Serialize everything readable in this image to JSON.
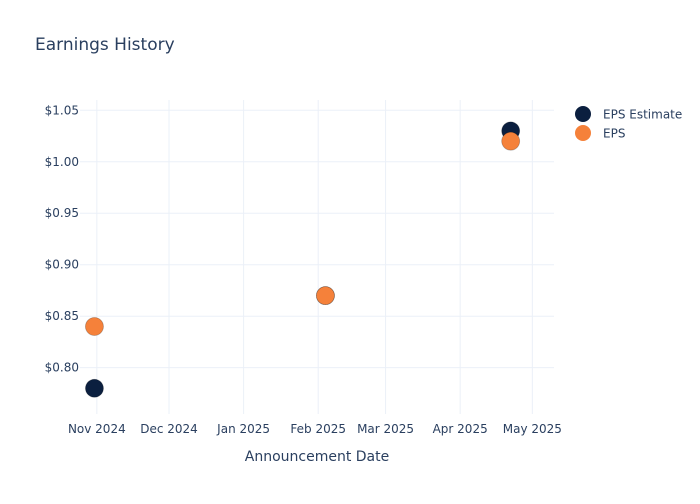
{
  "chart_data": {
    "type": "scatter",
    "title": "Earnings History",
    "xlabel": "Announcement Date",
    "ylabel": "",
    "x_ticks": [
      "Nov 2024",
      "Dec 2024",
      "Jan 2025",
      "Feb 2025",
      "Mar 2025",
      "Apr 2025",
      "May 2025"
    ],
    "x_tick_dates": [
      "2024-11-01",
      "2024-12-01",
      "2025-01-01",
      "2025-02-01",
      "2025-03-01",
      "2025-04-01",
      "2025-05-01"
    ],
    "xlim": [
      "2024-10-25",
      "2025-05-10"
    ],
    "y_ticks": [
      {
        "value": 0.8,
        "label": "$0.80"
      },
      {
        "value": 0.85,
        "label": "$0.85"
      },
      {
        "value": 0.9,
        "label": "$0.90"
      },
      {
        "value": 0.95,
        "label": "$0.95"
      },
      {
        "value": 1.0,
        "label": "$1.00"
      },
      {
        "value": 1.05,
        "label": "$1.05"
      }
    ],
    "ylim": [
      0.755,
      1.06
    ],
    "grid": true,
    "legend_position": "top-right",
    "series": [
      {
        "name": "EPS Estimate",
        "color": "#0b1f3f",
        "points": [
          {
            "x": "2024-10-31",
            "y": 0.78
          },
          {
            "x": "2025-02-04",
            "y": 0.87
          },
          {
            "x": "2025-04-22",
            "y": 1.03
          }
        ]
      },
      {
        "name": "EPS",
        "color": "#f5813a",
        "points": [
          {
            "x": "2024-10-31",
            "y": 0.84
          },
          {
            "x": "2025-02-04",
            "y": 0.87
          },
          {
            "x": "2025-04-22",
            "y": 1.02
          }
        ]
      }
    ]
  }
}
